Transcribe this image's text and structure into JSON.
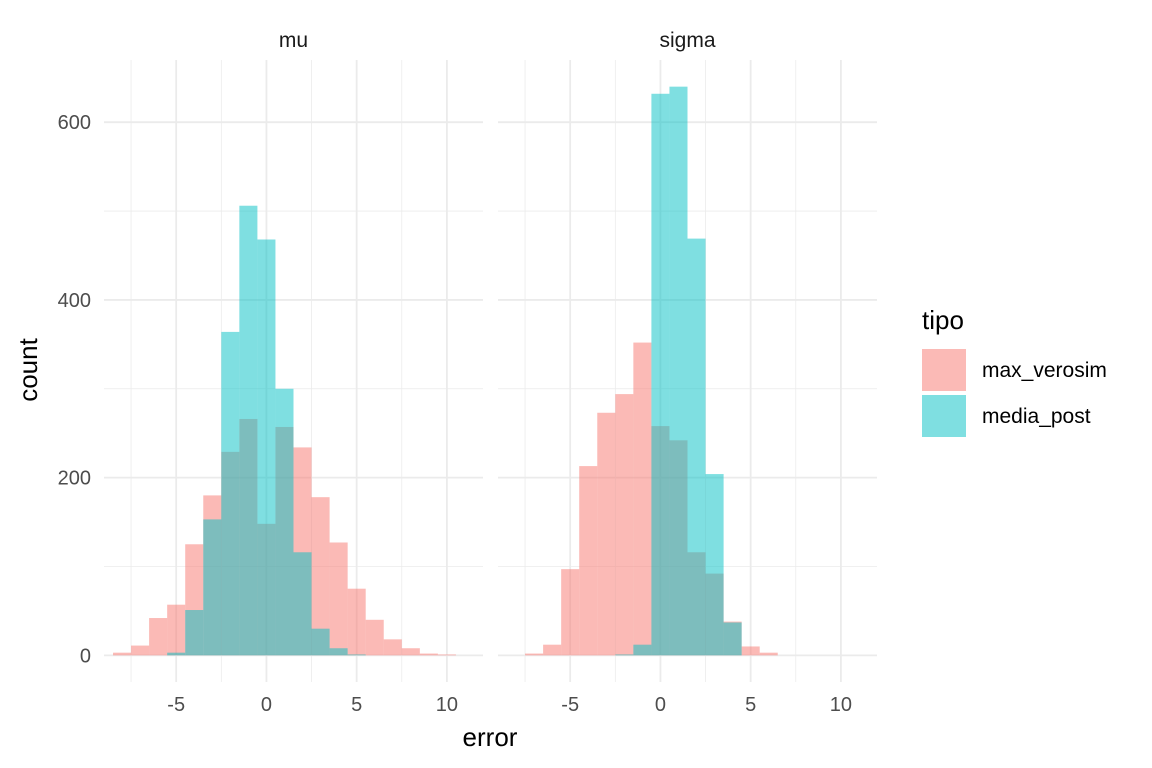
{
  "chart_data": {
    "type": "histogram",
    "title": "",
    "xlabel": "error",
    "ylabel": "count",
    "xlim": [
      -9,
      12
    ],
    "ylim": [
      -30,
      670
    ],
    "x_ticks": [
      -5,
      0,
      5,
      10
    ],
    "y_ticks": [
      0,
      200,
      400,
      600
    ],
    "bin_width": 1,
    "facets": [
      "mu",
      "sigma"
    ],
    "legend": {
      "title": "tipo",
      "position": "right"
    },
    "series": [
      {
        "name": "max_verosim",
        "color": "#F8766D"
      },
      {
        "name": "media_post",
        "color": "#00BFC4"
      }
    ],
    "panels": [
      {
        "facet": "mu",
        "histograms": {
          "max_verosim": {
            "bin_left": [
              -8.5,
              -7.5,
              -6.5,
              -5.5,
              -4.5,
              -3.5,
              -2.5,
              -1.5,
              -0.5,
              0.5,
              1.5,
              2.5,
              3.5,
              4.5,
              5.5,
              6.5,
              7.5,
              8.5,
              9.5
            ],
            "counts": [
              3,
              11,
              42,
              57,
              125,
              180,
              229,
              266,
              148,
              257,
              234,
              178,
              127,
              75,
              40,
              18,
              8,
              2,
              1
            ]
          },
          "media_post": {
            "bin_left": [
              -5.5,
              -4.5,
              -3.5,
              -2.5,
              -1.5,
              -0.5,
              0.5,
              1.5,
              2.5,
              3.5,
              4.5
            ],
            "counts": [
              3,
              51,
              153,
              364,
              506,
              468,
              300,
              116,
              30,
              8,
              1
            ]
          }
        }
      },
      {
        "facet": "sigma",
        "histograms": {
          "max_verosim": {
            "bin_left": [
              -7.5,
              -6.5,
              -5.5,
              -4.5,
              -3.5,
              -2.5,
              -1.5,
              -0.5,
              0.5,
              1.5,
              2.5,
              3.5,
              4.5,
              5.5
            ],
            "counts": [
              2,
              12,
              97,
              213,
              273,
              294,
              352,
              258,
              242,
              116,
              92,
              38,
              10,
              3
            ]
          },
          "media_post": {
            "bin_left": [
              -2.5,
              -1.5,
              -0.5,
              0.5,
              1.5,
              2.5,
              3.5
            ],
            "counts": [
              1,
              12,
              632,
              640,
              469,
              204,
              37
            ]
          }
        }
      }
    ]
  }
}
